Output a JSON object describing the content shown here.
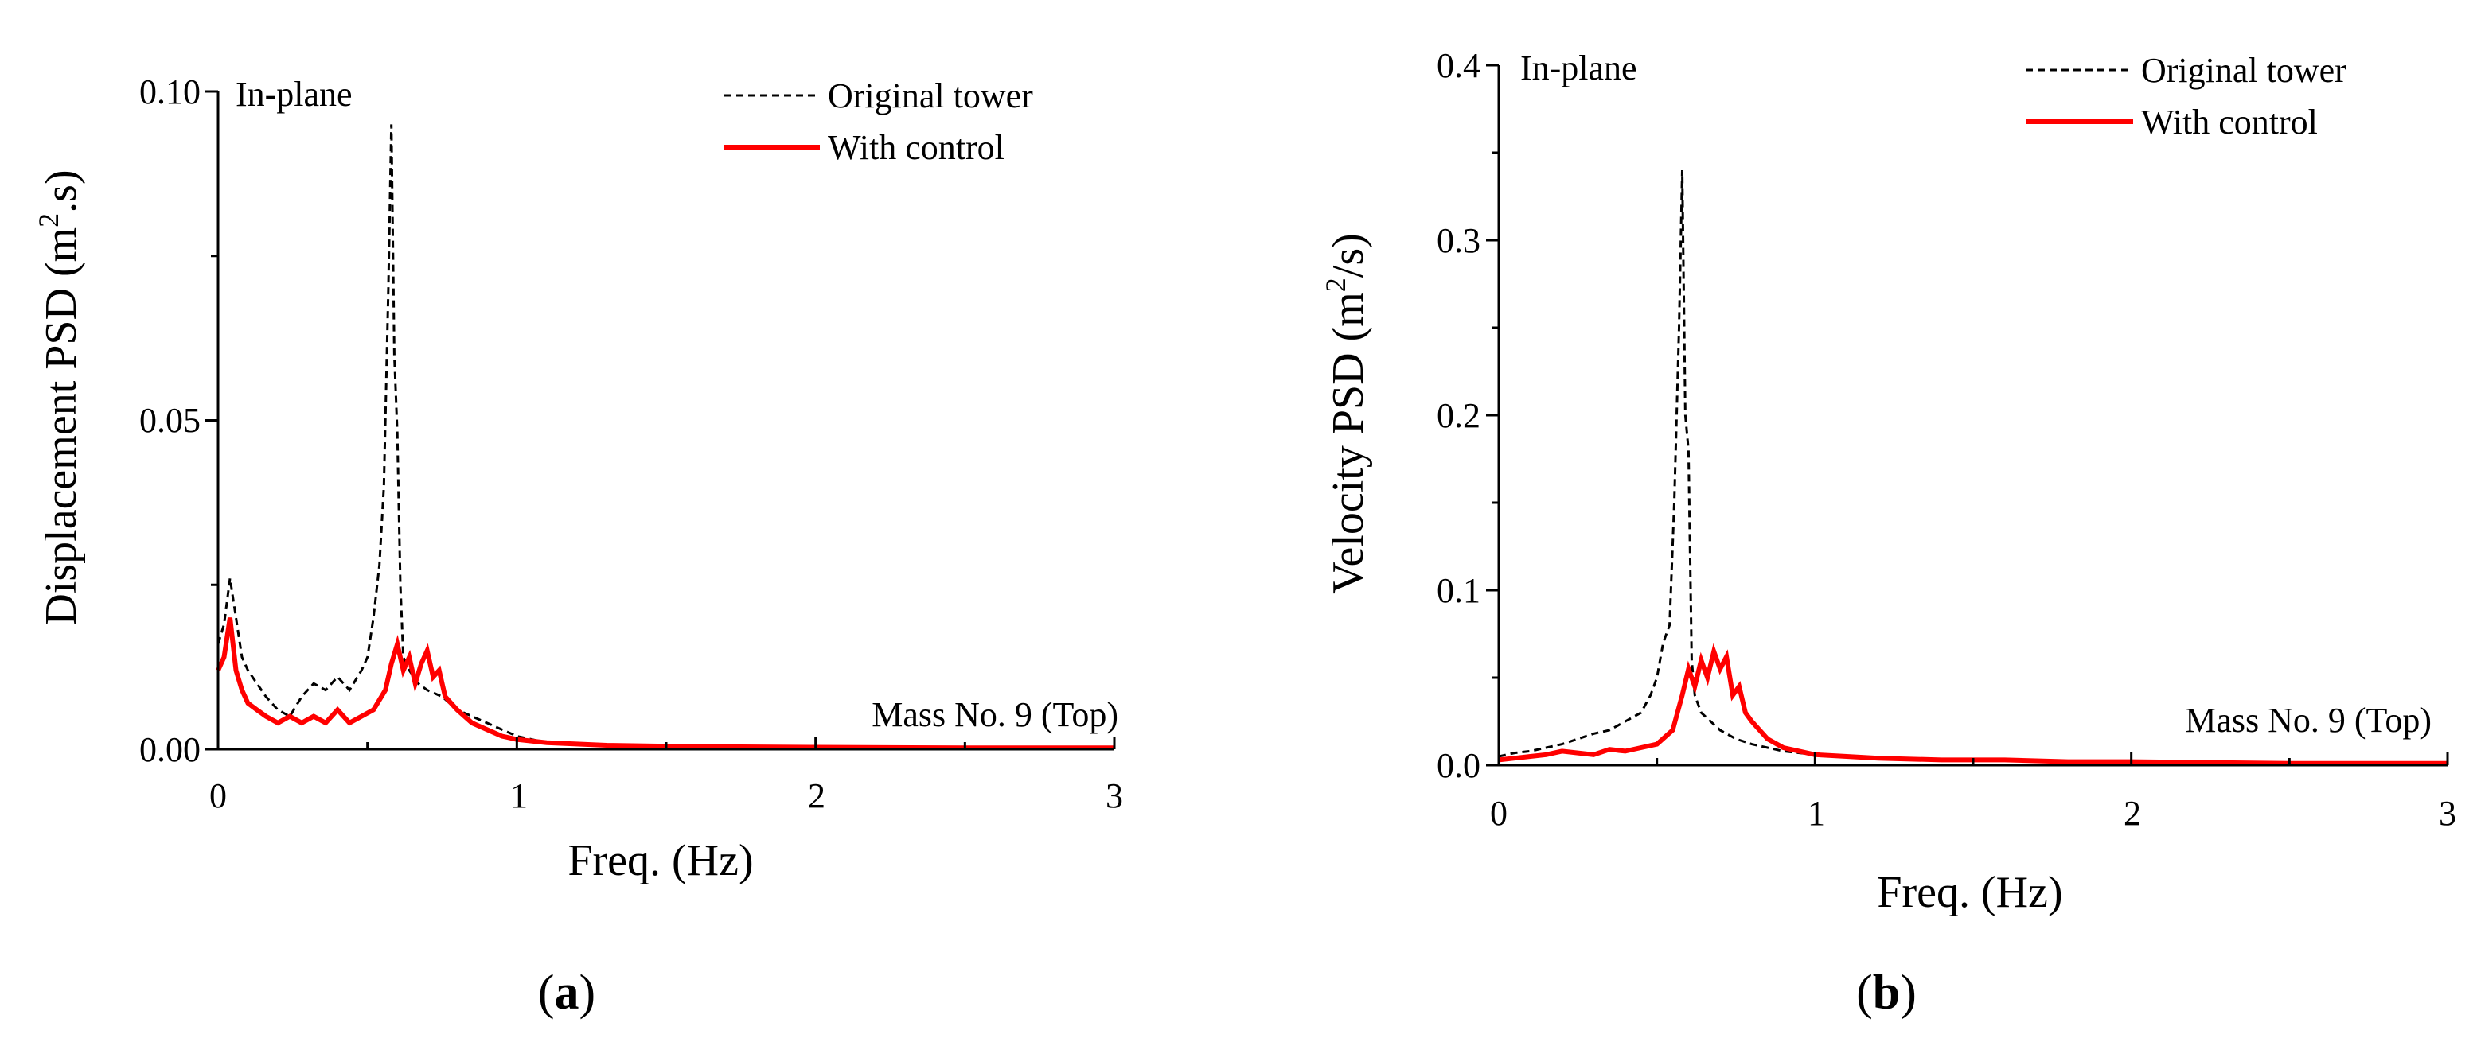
{
  "colors": {
    "original": "#000000",
    "control": "#ff0000",
    "axis": "#000000"
  },
  "chart_data": [
    {
      "type": "line",
      "panel_label": "(a)",
      "panel_letter": "a",
      "xlabel": "Freq. (Hz)",
      "ylabel_main": "Displacement PSD (m",
      "ylabel_sup": "2",
      "ylabel_tail": ".s)",
      "xlim": [
        0,
        3
      ],
      "ylim": [
        0,
        0.1
      ],
      "xticks": [
        "0",
        "1",
        "2",
        "3"
      ],
      "yticks": [
        "0.00",
        "0.05",
        "0.10"
      ],
      "annotation_tl": "In-plane",
      "annotation_br": "Mass No. 9 (Top)",
      "series": [
        {
          "name": "Original tower",
          "style": "dashed",
          "x": [
            0.0,
            0.02,
            0.04,
            0.06,
            0.08,
            0.1,
            0.13,
            0.16,
            0.2,
            0.24,
            0.28,
            0.32,
            0.36,
            0.4,
            0.44,
            0.48,
            0.5,
            0.52,
            0.54,
            0.555,
            0.57,
            0.58,
            0.59,
            0.6,
            0.61,
            0.62,
            0.64,
            0.67,
            0.7,
            0.75,
            0.8,
            0.85,
            0.9,
            0.95,
            1.0,
            1.05,
            1.1,
            1.2,
            1.4,
            1.6,
            1.8,
            2.0,
            2.2,
            2.4,
            2.6,
            2.8,
            3.0
          ],
          "values": [
            0.016,
            0.019,
            0.026,
            0.02,
            0.014,
            0.012,
            0.01,
            0.008,
            0.006,
            0.005,
            0.008,
            0.01,
            0.009,
            0.011,
            0.009,
            0.012,
            0.014,
            0.02,
            0.028,
            0.04,
            0.07,
            0.095,
            0.06,
            0.048,
            0.025,
            0.014,
            0.012,
            0.01,
            0.009,
            0.008,
            0.006,
            0.005,
            0.004,
            0.003,
            0.002,
            0.0015,
            0.001,
            0.0008,
            0.0006,
            0.0005,
            0.0004,
            0.0003,
            0.0003,
            0.0002,
            0.0002,
            0.0002,
            0.0002
          ]
        },
        {
          "name": "With control",
          "style": "solid",
          "x": [
            0.0,
            0.02,
            0.04,
            0.06,
            0.08,
            0.1,
            0.13,
            0.16,
            0.2,
            0.24,
            0.28,
            0.32,
            0.36,
            0.4,
            0.44,
            0.48,
            0.52,
            0.56,
            0.58,
            0.6,
            0.62,
            0.64,
            0.66,
            0.68,
            0.7,
            0.72,
            0.74,
            0.76,
            0.8,
            0.85,
            0.9,
            0.95,
            1.0,
            1.1,
            1.3,
            1.6,
            2.0,
            2.5,
            3.0
          ],
          "values": [
            0.012,
            0.014,
            0.02,
            0.012,
            0.009,
            0.007,
            0.006,
            0.005,
            0.004,
            0.005,
            0.004,
            0.005,
            0.004,
            0.006,
            0.004,
            0.005,
            0.006,
            0.009,
            0.013,
            0.016,
            0.012,
            0.014,
            0.01,
            0.013,
            0.015,
            0.011,
            0.012,
            0.008,
            0.006,
            0.004,
            0.003,
            0.002,
            0.0015,
            0.001,
            0.0006,
            0.0004,
            0.0003,
            0.0002,
            0.0002
          ]
        }
      ]
    },
    {
      "type": "line",
      "panel_label": "(b)",
      "panel_letter": "b",
      "xlabel": "Freq. (Hz)",
      "ylabel_main": "Velocity PSD (m",
      "ylabel_sup": "2",
      "ylabel_tail": "/s)",
      "xlim": [
        0,
        3
      ],
      "ylim": [
        0,
        0.4
      ],
      "xticks": [
        "0",
        "1",
        "2",
        "3"
      ],
      "yticks": [
        "0.0",
        "0.1",
        "0.2",
        "0.3",
        "0.4"
      ],
      "annotation_tl": "In-plane",
      "annotation_br": "Mass No. 9 (Top)",
      "series": [
        {
          "name": "Original tower",
          "style": "dashed",
          "x": [
            0.0,
            0.05,
            0.1,
            0.15,
            0.2,
            0.25,
            0.3,
            0.35,
            0.4,
            0.45,
            0.48,
            0.5,
            0.52,
            0.54,
            0.555,
            0.57,
            0.58,
            0.59,
            0.6,
            0.61,
            0.62,
            0.64,
            0.67,
            0.7,
            0.75,
            0.8,
            0.85,
            0.9,
            1.0,
            1.1,
            1.2,
            1.4,
            1.6,
            1.8,
            2.0,
            2.2,
            2.4,
            2.6,
            2.8,
            3.0
          ],
          "values": [
            0.005,
            0.007,
            0.008,
            0.01,
            0.012,
            0.015,
            0.018,
            0.02,
            0.025,
            0.03,
            0.04,
            0.05,
            0.07,
            0.08,
            0.15,
            0.25,
            0.34,
            0.2,
            0.18,
            0.06,
            0.04,
            0.03,
            0.025,
            0.02,
            0.015,
            0.012,
            0.01,
            0.008,
            0.006,
            0.005,
            0.004,
            0.003,
            0.003,
            0.002,
            0.002,
            0.0015,
            0.0015,
            0.001,
            0.001,
            0.001
          ]
        },
        {
          "name": "With control",
          "style": "solid",
          "x": [
            0.0,
            0.05,
            0.1,
            0.15,
            0.2,
            0.25,
            0.3,
            0.35,
            0.4,
            0.45,
            0.5,
            0.55,
            0.58,
            0.6,
            0.62,
            0.64,
            0.66,
            0.68,
            0.7,
            0.72,
            0.74,
            0.76,
            0.78,
            0.8,
            0.85,
            0.9,
            0.95,
            1.0,
            1.1,
            1.2,
            1.4,
            1.6,
            1.8,
            2.0,
            2.5,
            3.0
          ],
          "values": [
            0.003,
            0.004,
            0.005,
            0.006,
            0.008,
            0.007,
            0.006,
            0.009,
            0.008,
            0.01,
            0.012,
            0.02,
            0.04,
            0.055,
            0.045,
            0.06,
            0.05,
            0.065,
            0.055,
            0.062,
            0.04,
            0.045,
            0.03,
            0.025,
            0.015,
            0.01,
            0.008,
            0.006,
            0.005,
            0.004,
            0.003,
            0.003,
            0.002,
            0.002,
            0.001,
            0.001
          ]
        }
      ]
    }
  ]
}
